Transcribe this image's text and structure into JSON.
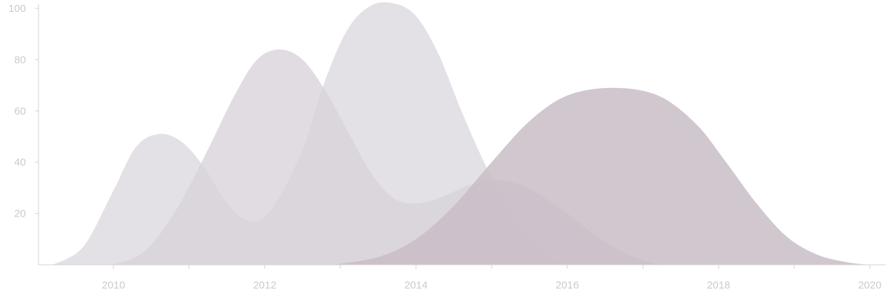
{
  "chart_data": {
    "type": "area",
    "title": "",
    "xlabel": "",
    "ylabel": "",
    "xlim": [
      2009,
      2020.1
    ],
    "ylim": [
      0,
      101.5
    ],
    "x_ticks": [
      "2010",
      "2012",
      "2014",
      "2016",
      "2018",
      "2020"
    ],
    "y_ticks": [
      "20",
      "40",
      "60",
      "80",
      "100"
    ],
    "grid": false,
    "legend": "none",
    "colors": [
      "#e1dfe4",
      "#d8d3da",
      "#c9bdc7"
    ],
    "series": [
      {
        "color": "#e1dfe4",
        "opacity": 0.95,
        "points": [
          [
            2009.2,
            0
          ],
          [
            2009.6,
            7
          ],
          [
            2010.0,
            29
          ],
          [
            2010.3,
            46
          ],
          [
            2010.6,
            51
          ],
          [
            2010.9,
            48
          ],
          [
            2011.2,
            38
          ],
          [
            2011.5,
            24
          ],
          [
            2011.8,
            17
          ],
          [
            2012.1,
            22
          ],
          [
            2012.5,
            45
          ],
          [
            2012.8,
            72
          ],
          [
            2013.1,
            92
          ],
          [
            2013.4,
            101
          ],
          [
            2013.7,
            102
          ],
          [
            2014.0,
            97
          ],
          [
            2014.3,
            82
          ],
          [
            2014.6,
            60
          ],
          [
            2014.9,
            40
          ],
          [
            2015.2,
            23
          ],
          [
            2015.5,
            10
          ],
          [
            2015.8,
            2
          ],
          [
            2016.1,
            0
          ]
        ]
      },
      {
        "color": "#d8d3da",
        "opacity": 0.8,
        "points": [
          [
            2010.0,
            0
          ],
          [
            2010.4,
            5
          ],
          [
            2010.8,
            20
          ],
          [
            2011.2,
            42
          ],
          [
            2011.6,
            66
          ],
          [
            2011.9,
            80
          ],
          [
            2012.2,
            84
          ],
          [
            2012.5,
            80
          ],
          [
            2012.8,
            68
          ],
          [
            2013.1,
            52
          ],
          [
            2013.4,
            36
          ],
          [
            2013.7,
            26
          ],
          [
            2014.0,
            24
          ],
          [
            2014.3,
            26
          ],
          [
            2014.7,
            31
          ],
          [
            2015.0,
            33
          ],
          [
            2015.3,
            32
          ],
          [
            2015.6,
            28
          ],
          [
            2016.0,
            20
          ],
          [
            2016.4,
            11
          ],
          [
            2016.8,
            4
          ],
          [
            2017.2,
            0
          ]
        ]
      },
      {
        "color": "#c9bdc7",
        "opacity": 0.85,
        "points": [
          [
            2012.9,
            0
          ],
          [
            2013.5,
            3
          ],
          [
            2014.0,
            10
          ],
          [
            2014.5,
            23
          ],
          [
            2015.0,
            40
          ],
          [
            2015.5,
            56
          ],
          [
            2016.0,
            66
          ],
          [
            2016.6,
            69
          ],
          [
            2017.2,
            66
          ],
          [
            2017.7,
            55
          ],
          [
            2018.1,
            40
          ],
          [
            2018.5,
            24
          ],
          [
            2018.9,
            11
          ],
          [
            2019.3,
            4
          ],
          [
            2019.7,
            1
          ],
          [
            2020.0,
            0
          ]
        ]
      }
    ]
  }
}
